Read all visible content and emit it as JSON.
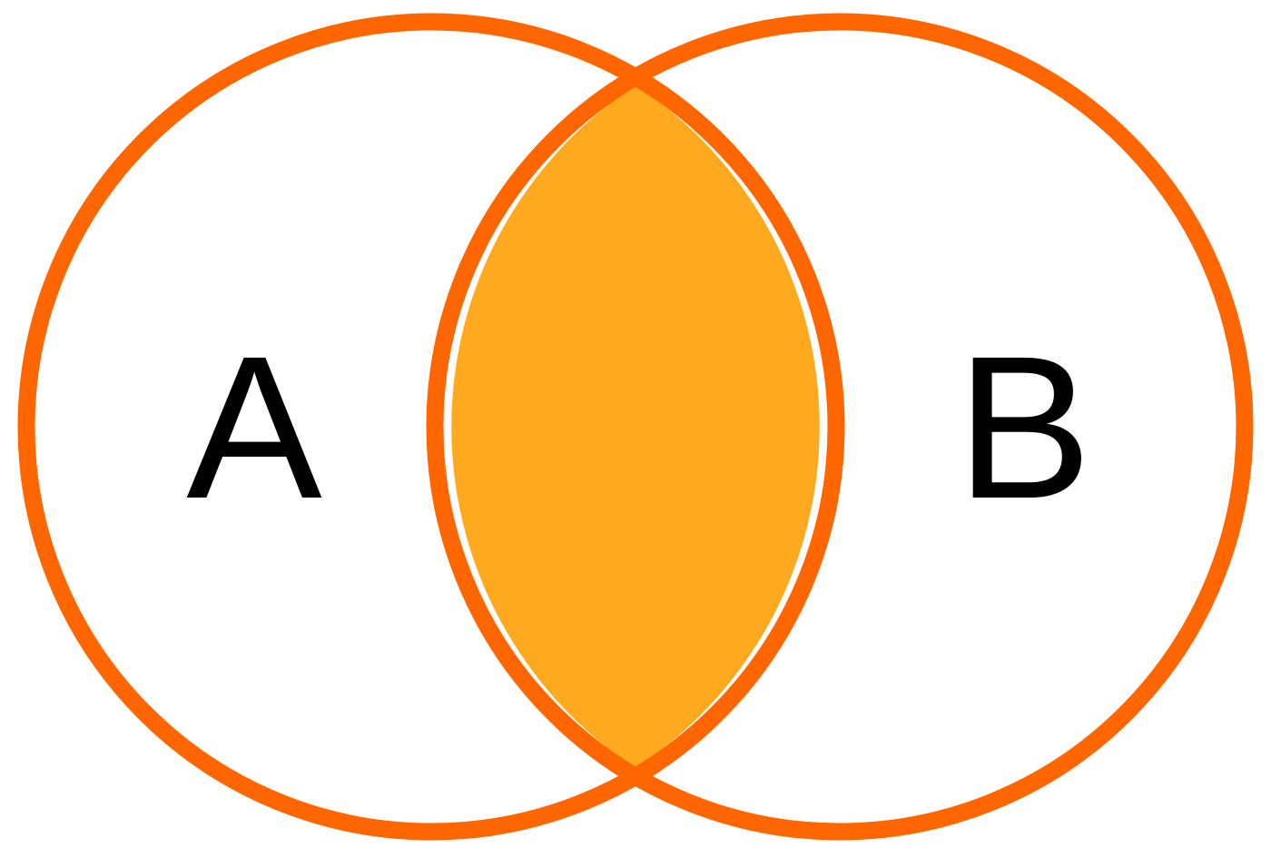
{
  "diagram": {
    "type": "venn",
    "sets": [
      {
        "label": "A"
      },
      {
        "label": "B"
      }
    ],
    "highlighted_region": "A ∩ B",
    "colors": {
      "outline": "#FF6600",
      "intersection_fill": "#FFAA1E",
      "background": "#FFFFFF",
      "label": "#000000"
    }
  }
}
